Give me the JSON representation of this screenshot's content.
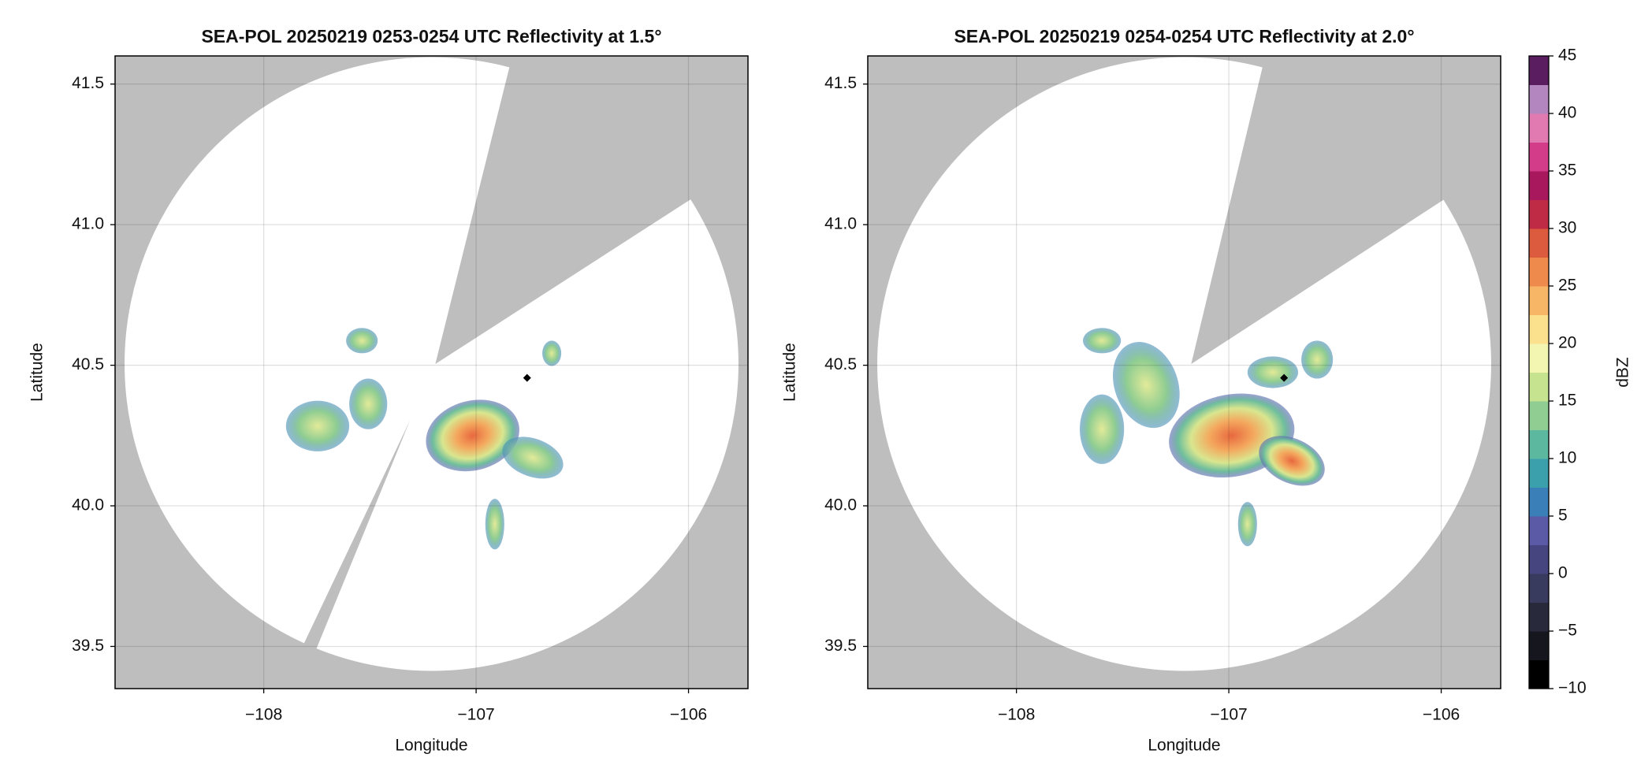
{
  "chart_data": [
    {
      "type": "map",
      "title": "SEA-POL 20250219 0253-0254 UTC Reflectivity at 1.5°",
      "xlabel": "Longitude",
      "ylabel": "Latitude",
      "xlim": [
        -108.7,
        -105.72
      ],
      "ylim": [
        39.35,
        41.6
      ],
      "xticks": [
        {
          "value": -108,
          "label": "−108"
        },
        {
          "value": -107,
          "label": "−107"
        },
        {
          "value": -106,
          "label": "−106"
        }
      ],
      "yticks": [
        39.5,
        {
          "value": 40.0,
          "label": "40.0"
        },
        40.5,
        {
          "value": 41.0,
          "label": "41.0"
        },
        41.5
      ],
      "grid": true,
      "points": [
        {
          "x": -106.76,
          "y": 40.455
        }
      ]
    },
    {
      "type": "map",
      "title": "SEA-POL 20250219 0254-0254 UTC Reflectivity at 2.0°",
      "xlabel": "Longitude",
      "ylabel": "Latitude",
      "xlim": [
        -108.7,
        -105.72
      ],
      "ylim": [
        39.35,
        41.6
      ],
      "xticks": [
        {
          "value": -108,
          "label": "−108"
        },
        {
          "value": -107,
          "label": "−107"
        },
        {
          "value": -106,
          "label": "−106"
        }
      ],
      "yticks": [
        39.5,
        {
          "value": 40.0,
          "label": "40.0"
        },
        40.5,
        {
          "value": 41.0,
          "label": "41.0"
        },
        41.5
      ],
      "grid": true,
      "points": [
        {
          "x": -106.74,
          "y": 40.455
        }
      ],
      "colorbar": {
        "label": "dBZ",
        "lim": [
          -10,
          45
        ],
        "ticks": [
          {
            "value": -10,
            "label": "−10"
          },
          {
            "value": -5,
            "label": "−5"
          },
          0,
          5,
          10,
          15,
          20,
          25,
          30,
          35,
          40,
          45
        ],
        "colors": [
          "#000000",
          "#16161e",
          "#282a3c",
          "#383a5e",
          "#46457f",
          "#5a5aa6",
          "#3b7fb8",
          "#3b9fac",
          "#5cb89f",
          "#8fcd92",
          "#c6e38f",
          "#f2f6b1",
          "#fbe08e",
          "#f7b566",
          "#ee8a4c",
          "#dc5a3d",
          "#bf2a45",
          "#a8185c",
          "#d23c88",
          "#e07ab0",
          "#b386c0",
          "#5a1e60"
        ]
      }
    }
  ]
}
